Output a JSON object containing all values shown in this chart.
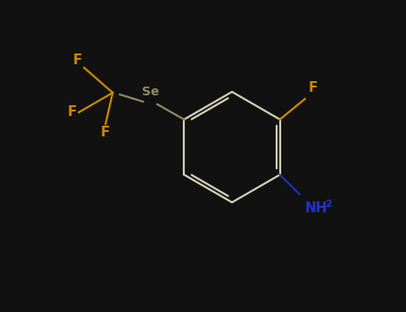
{
  "background": "#111111",
  "bond_color": "#d0d0b8",
  "bond_width": 1.6,
  "Se_color": "#8a8a60",
  "Se_label": "Se",
  "F_color": "#cc8800",
  "NH2_color": "#2233cc",
  "NH2_label": "NH",
  "sub2_label": "2",
  "F_label": "F",
  "figsize": [
    4.55,
    3.5
  ],
  "dpi": 100,
  "font_size_Se": 10,
  "font_size_F": 11,
  "font_size_NH2": 11,
  "font_size_sub": 8
}
